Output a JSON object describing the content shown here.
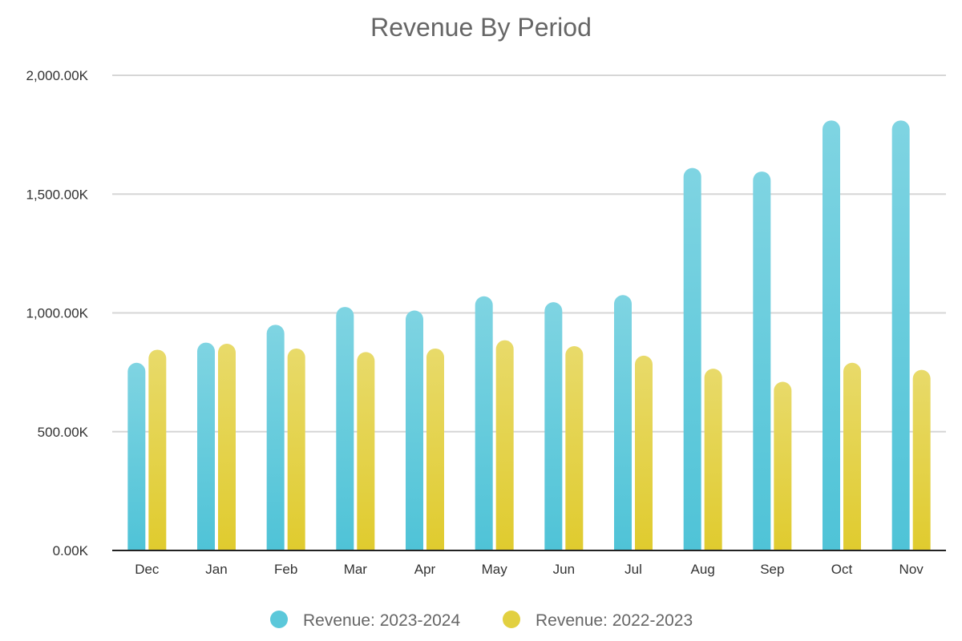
{
  "chart_data": {
    "type": "bar",
    "title": "Revenue By Period",
    "xlabel": "",
    "ylabel": "",
    "categories": [
      "Dec",
      "Jan",
      "Feb",
      "Mar",
      "Apr",
      "May",
      "Jun",
      "Jul",
      "Aug",
      "Sep",
      "Oct",
      "Nov"
    ],
    "series": [
      {
        "name": "Revenue: 2023-2024",
        "color": "#5bc8da",
        "values": [
          790,
          875,
          950,
          1025,
          1010,
          1070,
          1045,
          1075,
          1610,
          1595,
          1810,
          1810
        ]
      },
      {
        "name": "Revenue: 2022-2023",
        "color": "#e2d040",
        "values": [
          845,
          870,
          850,
          835,
          850,
          885,
          860,
          820,
          765,
          710,
          790,
          760
        ]
      }
    ],
    "ylim": [
      0,
      2000
    ],
    "y_ticks": [
      {
        "value": 0,
        "label": "0.00K"
      },
      {
        "value": 500,
        "label": "500.00K"
      },
      {
        "value": 1000,
        "label": "1,000.00K"
      },
      {
        "value": 1500,
        "label": "1,500.00K"
      },
      {
        "value": 2000,
        "label": "2,000.00K"
      }
    ],
    "grid": true,
    "legend_position": "bottom"
  }
}
